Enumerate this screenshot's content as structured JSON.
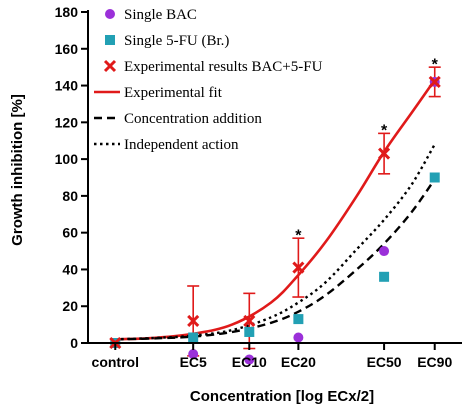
{
  "chart_data": {
    "type": "scatter",
    "xlabel": "Concentration [log ECx/2]",
    "ylabel": "Growth inhibition [%]",
    "ylim": [
      0,
      180
    ],
    "yticks": [
      0,
      20,
      40,
      60,
      80,
      100,
      120,
      140,
      160,
      180
    ],
    "categories": [
      "control",
      "EC5",
      "EC10",
      "EC20",
      "EC50",
      "EC90"
    ],
    "x_positions": [
      0,
      1,
      1.72,
      2.35,
      3.45,
      4.1
    ],
    "xlim": [
      -0.35,
      4.45
    ],
    "grid": false,
    "legend_position": "top-left",
    "series": [
      {
        "name": "Single BAC",
        "kind": "marker",
        "marker": "circle",
        "color": "#9b30d9",
        "values": [
          0,
          -6,
          -9,
          3,
          50,
          142
        ]
      },
      {
        "name": "Single 5-FU (Br.)",
        "kind": "marker",
        "marker": "square",
        "color": "#22a0b4",
        "values": [
          0,
          3,
          6,
          13,
          36,
          90
        ]
      },
      {
        "name": "Experimental results BAC+5-FU",
        "kind": "marker",
        "marker": "x",
        "color": "#e01a1a",
        "values": [
          0,
          12,
          12,
          41,
          103,
          142
        ],
        "error": [
          0,
          19,
          15,
          16,
          11,
          8
        ]
      },
      {
        "name": "Experimental fit",
        "kind": "line",
        "style": "solid",
        "color": "#e01a1a",
        "x": [
          0,
          0.5,
          1,
          1.5,
          2,
          2.35,
          2.7,
          3.1,
          3.45,
          3.8,
          4.1
        ],
        "values": [
          2,
          2.8,
          5,
          10,
          22,
          37,
          55,
          80,
          104,
          125,
          143
        ]
      },
      {
        "name": "Concentration addition",
        "kind": "line",
        "style": "dashed",
        "color": "#000000",
        "x": [
          0,
          0.5,
          1,
          1.5,
          2,
          2.35,
          2.7,
          3.1,
          3.45,
          3.8,
          4.1
        ],
        "values": [
          2,
          2.5,
          3.5,
          6,
          11,
          17,
          26,
          40,
          54,
          71,
          89
        ]
      },
      {
        "name": "Independent action",
        "kind": "line",
        "style": "dotted",
        "color": "#000000",
        "x": [
          0,
          0.5,
          1,
          1.5,
          2,
          2.35,
          2.7,
          3.1,
          3.45,
          3.8,
          4.1
        ],
        "values": [
          2,
          2.7,
          4,
          7,
          14,
          22,
          33,
          51,
          67,
          86,
          108
        ]
      }
    ],
    "annotations": [
      {
        "text": "*",
        "x": 2.35,
        "y": 59
      },
      {
        "text": "*",
        "x": 3.45,
        "y": 116
      },
      {
        "text": "*",
        "x": 4.1,
        "y": 152
      }
    ]
  }
}
